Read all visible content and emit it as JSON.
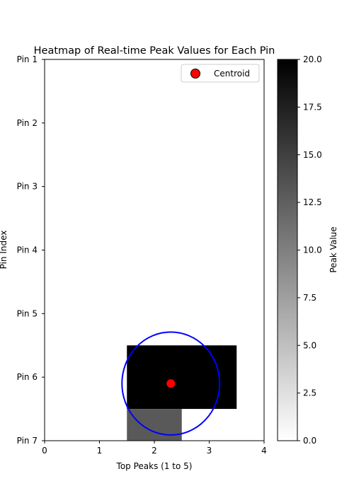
{
  "chart_data": {
    "type": "heatmap",
    "title": "Heatmap of Real-time Peak Values for Each Pin",
    "xlabel": "Top Peaks (1 to 5)",
    "ylabel": "Pin Index",
    "xlim": [
      0,
      4
    ],
    "ylim": [
      7,
      1
    ],
    "x_ticks": [
      0,
      1,
      2,
      3,
      4
    ],
    "y_ticks": [
      {
        "value": 1,
        "label": "Pin 1"
      },
      {
        "value": 2,
        "label": "Pin 2"
      },
      {
        "value": 3,
        "label": "Pin 3"
      },
      {
        "value": 4,
        "label": "Pin 4"
      },
      {
        "value": 5,
        "label": "Pin 5"
      },
      {
        "value": 6,
        "label": "Pin 6"
      },
      {
        "value": 7,
        "label": "Pin 7"
      }
    ],
    "cells": [
      {
        "x0": 1.5,
        "x1": 3.5,
        "y0": 5.5,
        "y1": 6.5,
        "value": 20
      },
      {
        "x0": 1.5,
        "x1": 2.5,
        "y0": 6.5,
        "y1": 7.0,
        "value": 13
      }
    ],
    "colorbar": {
      "label": "Peak Value",
      "range": [
        0,
        20
      ],
      "ticks": [
        "0.0",
        "2.5",
        "5.0",
        "7.5",
        "10.0",
        "12.5",
        "15.0",
        "17.5",
        "20.0"
      ],
      "colormap": "gray_r"
    },
    "centroid": {
      "x": 2.3,
      "y": 6.1,
      "color": "#ff0000",
      "label": "Centroid"
    },
    "circle": {
      "cx": 2.3,
      "cy": 6.1,
      "rx": 0.89,
      "ry": 0.81,
      "color": "#0000ff"
    },
    "legend": {
      "placement": "upper-right",
      "items": [
        {
          "label": "Centroid",
          "color": "#ff0000"
        }
      ]
    },
    "grid": false
  }
}
